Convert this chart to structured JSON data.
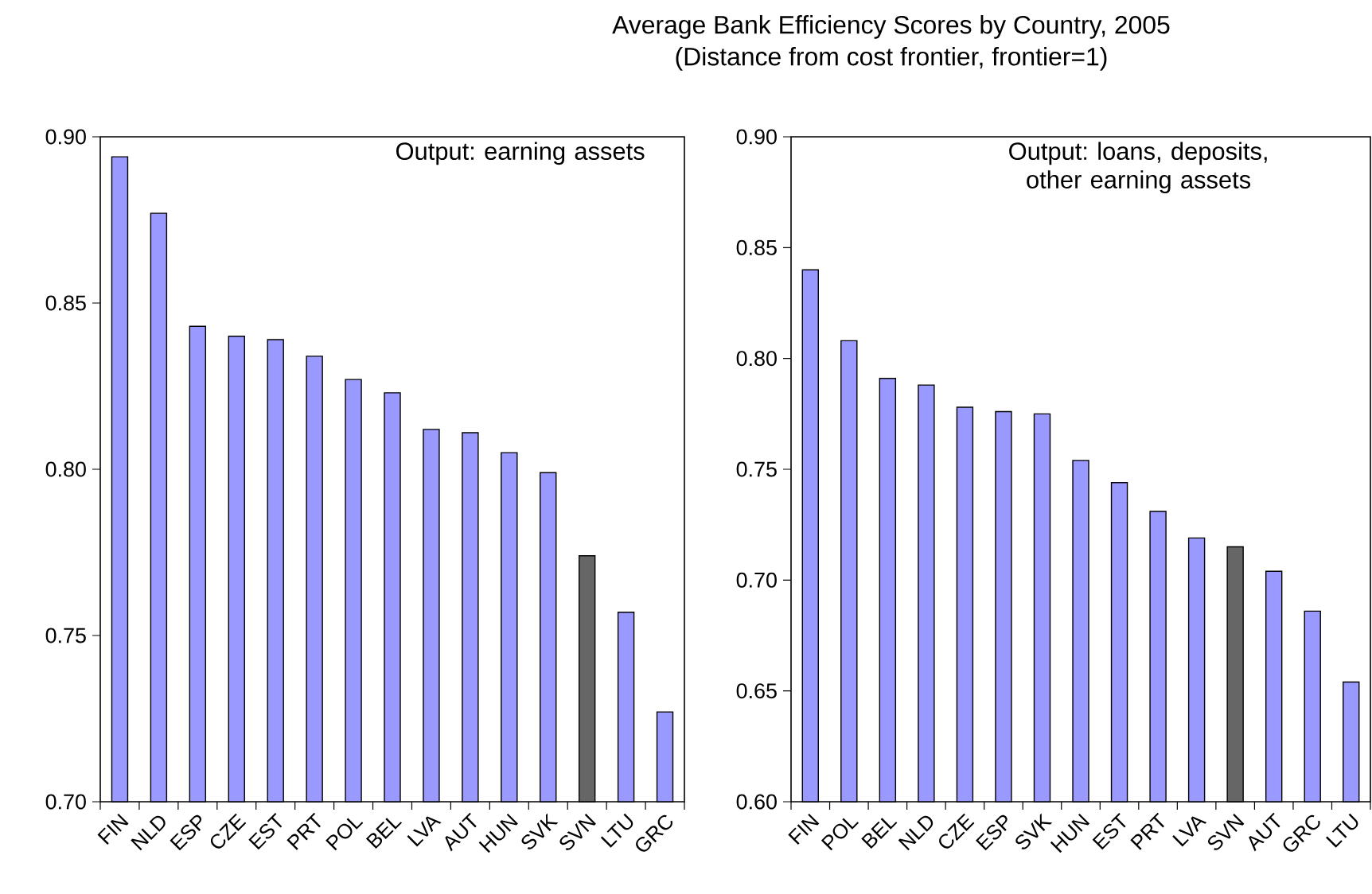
{
  "chart_data": [
    {
      "type": "bar",
      "categories": [
        "FIN",
        "NLD",
        "ESP",
        "CZE",
        "EST",
        "PRT",
        "POL",
        "BEL",
        "LVA",
        "AUT",
        "HUN",
        "SVK",
        "SVN",
        "LTU",
        "GRC"
      ],
      "values": [
        0.894,
        0.877,
        0.843,
        0.84,
        0.839,
        0.834,
        0.827,
        0.823,
        0.812,
        0.811,
        0.805,
        0.799,
        0.774,
        0.757,
        0.727
      ],
      "colors": [
        "#9999ff",
        "#9999ff",
        "#9999ff",
        "#9999ff",
        "#9999ff",
        "#9999ff",
        "#9999ff",
        "#9999ff",
        "#9999ff",
        "#9999ff",
        "#9999ff",
        "#9999ff",
        "#666666",
        "#9999ff",
        "#9999ff"
      ],
      "ylim": [
        0.7,
        0.9
      ],
      "yticks": [
        {
          "value": 0.7,
          "label": "0.70"
        },
        {
          "value": 0.75,
          "label": "0.75"
        },
        {
          "value": 0.8,
          "label": "0.80"
        },
        {
          "value": 0.85,
          "label": "0.85"
        },
        {
          "value": 0.9,
          "label": "0.90"
        }
      ],
      "annotations": [
        "Output: earning assets"
      ]
    },
    {
      "type": "bar",
      "title": "Average Bank Efficiency Scores by Country, 2005",
      "subtitle": "(Distance from cost frontier, frontier=1)",
      "categories": [
        "FIN",
        "POL",
        "BEL",
        "NLD",
        "CZE",
        "ESP",
        "SVK",
        "HUN",
        "EST",
        "PRT",
        "LVA",
        "SVN",
        "AUT",
        "GRC",
        "LTU"
      ],
      "values": [
        0.84,
        0.808,
        0.791,
        0.788,
        0.778,
        0.776,
        0.775,
        0.754,
        0.744,
        0.731,
        0.719,
        0.715,
        0.704,
        0.686,
        0.654
      ],
      "colors": [
        "#9999ff",
        "#9999ff",
        "#9999ff",
        "#9999ff",
        "#9999ff",
        "#9999ff",
        "#9999ff",
        "#9999ff",
        "#9999ff",
        "#9999ff",
        "#9999ff",
        "#666666",
        "#9999ff",
        "#9999ff",
        "#9999ff"
      ],
      "ylim": [
        0.6,
        0.9
      ],
      "yticks": [
        {
          "value": 0.6,
          "label": "0.60"
        },
        {
          "value": 0.65,
          "label": "0.65"
        },
        {
          "value": 0.7,
          "label": "0.70"
        },
        {
          "value": 0.75,
          "label": "0.75"
        },
        {
          "value": 0.8,
          "label": "0.80"
        },
        {
          "value": 0.85,
          "label": "0.85"
        },
        {
          "value": 0.9,
          "label": "0.90"
        }
      ],
      "annotations": [
        "Output: loans, deposits, other earning assets"
      ]
    }
  ]
}
